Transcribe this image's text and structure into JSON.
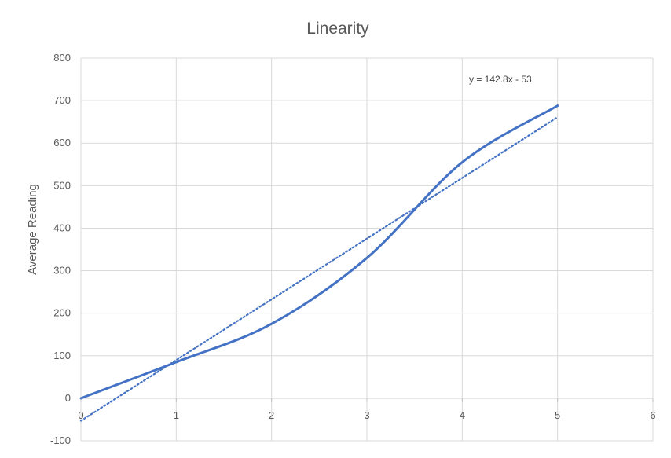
{
  "chart_data": {
    "type": "scatter",
    "title": "Linearity",
    "xlabel": "",
    "ylabel": "Average Reading",
    "xlim": [
      0,
      6
    ],
    "ylim": [
      -100,
      800
    ],
    "x_ticks": [
      "0",
      "1",
      "2",
      "3",
      "4",
      "5",
      "6"
    ],
    "y_ticks": [
      "-100",
      "0",
      "100",
      "200",
      "300",
      "400",
      "500",
      "600",
      "700",
      "800"
    ],
    "grid": true,
    "legend": "none",
    "series": [
      {
        "style": "smooth-line",
        "color": "#4472C4",
        "x": [
          0,
          1,
          2,
          3,
          4,
          5
        ],
        "y": [
          0,
          85,
          175,
          330,
          555,
          688
        ]
      }
    ],
    "trendline": {
      "style": "dotted",
      "color": "#4472C4",
      "slope": 142.8,
      "intercept": -53,
      "x_range": [
        0,
        5
      ],
      "equation": "y = 142.8x - 53"
    }
  }
}
